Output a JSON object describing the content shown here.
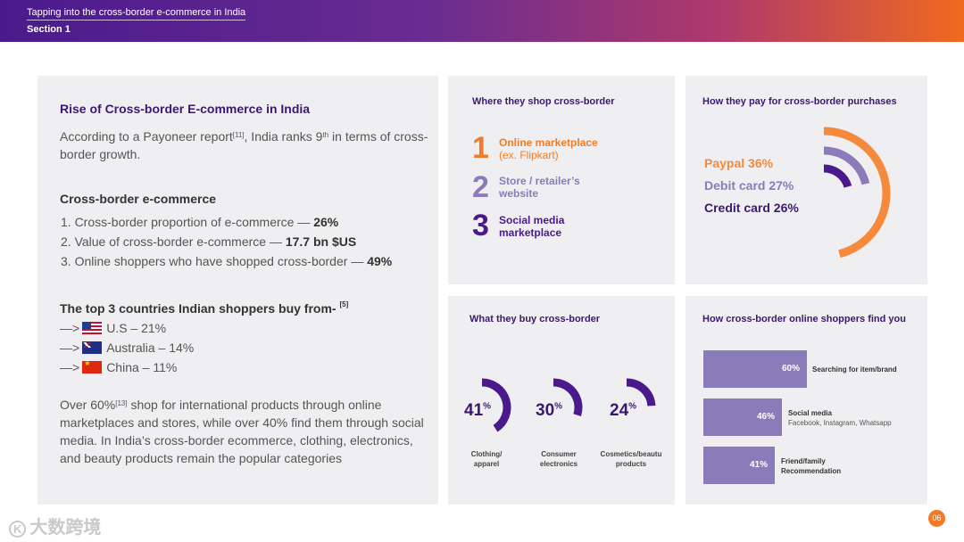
{
  "header": {
    "title": "Tapping into the cross-border e-commerce in India",
    "section": "Section 1"
  },
  "left": {
    "title": "Rise of Cross-border E-commerce in India",
    "intro_a": "According to a Payoneer report",
    "intro_ref": "[11]",
    "intro_b": ", India ranks 9",
    "intro_sup": "th",
    "intro_c": " in terms of cross-border growth.",
    "cb_heading": "Cross-border e-commerce",
    "cb_items": [
      {
        "text": "1. Cross-border proportion of e-commerce — ",
        "value": "26%"
      },
      {
        "text": "2. Value of cross-border e-commerce — ",
        "value": "17.7 bn $US"
      },
      {
        "text": "3. Online shoppers who have shopped cross-border — ",
        "value": "49%"
      }
    ],
    "countries_heading": "The top 3 countries Indian shoppers buy from- ",
    "countries_ref": "[5]",
    "countries": [
      {
        "arrow": "—>",
        "flag": "us-flag",
        "text": "U.S – 21%"
      },
      {
        "arrow": "—>",
        "flag": "australia-flag",
        "text": "Australia – 14%"
      },
      {
        "arrow": "—>",
        "flag": "china-flag",
        "text": "China – 11%"
      }
    ],
    "summary_a": "Over 60%",
    "summary_ref": "[13]",
    "summary_b": " shop for international products through online marketplaces and stores, while over 40% find them through social media. In India’s cross-border ecommerce, clothing, electronics, and beauty products remain the popular categories"
  },
  "shop": {
    "title": "Where they shop cross-border",
    "items": [
      {
        "rank": "1",
        "line1": "Online marketplace",
        "line2": "(ex. Flipkart)",
        "color": "#f07c28"
      },
      {
        "rank": "2",
        "line1": "Store / retailer’s",
        "line2": "website",
        "color": "#8a7cb8"
      },
      {
        "rank": "3",
        "line1": "Social media",
        "line2": "marketplace",
        "color": "#4a1a8c"
      }
    ]
  },
  "pay": {
    "title": "How they pay for cross-border purchases",
    "items": [
      {
        "label": "Paypal 36%",
        "value": 36,
        "color": "#f58a3c"
      },
      {
        "label": "Debit card 27%",
        "value": 27,
        "color": "#8a7cb8"
      },
      {
        "label": "Credit card 26%",
        "value": 26,
        "color": "#4a1a8c"
      }
    ]
  },
  "buy": {
    "title": "What they buy cross-border",
    "items": [
      {
        "num": "41",
        "unit": "%",
        "value": 41,
        "label1": "Clothing/",
        "label2": "apparel"
      },
      {
        "num": "30",
        "unit": "%",
        "value": 30,
        "label1": "Consumer",
        "label2": "electronics"
      },
      {
        "num": "24",
        "unit": "%",
        "value": 24,
        "label1": "Cosmetics/beautu",
        "label2": "products"
      }
    ]
  },
  "find": {
    "title": "How cross-border online shoppers find you",
    "items": [
      {
        "value": "60%",
        "pct": 60,
        "label": "Searching for item/brand",
        "sub": ""
      },
      {
        "value": "46%",
        "pct": 46,
        "label": "Social media",
        "sub": "Facebook, Instagram, Whatsapp"
      },
      {
        "value": "41%",
        "pct": 41,
        "label": "Friend/family",
        "sub": "Recommendation"
      }
    ]
  },
  "footer": {
    "watermark": "大数跨境",
    "page": "06"
  }
}
